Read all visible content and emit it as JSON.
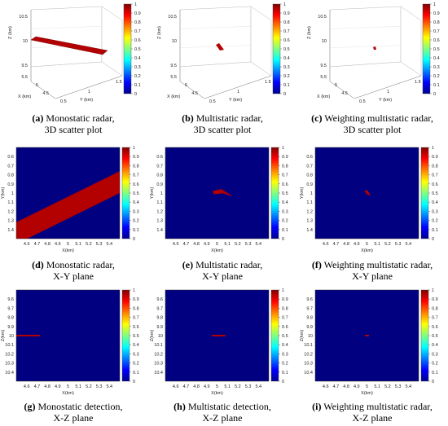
{
  "colors": {
    "background": "#000080",
    "target": "#b30000",
    "colormap": [
      "#00008f",
      "#0000ff",
      "#0080ff",
      "#00ffff",
      "#80ff80",
      "#ffff00",
      "#ff8000",
      "#ff0000",
      "#800000"
    ]
  },
  "panels": [
    {
      "label": "(a)",
      "caption_line1": "Monostatic radar,",
      "caption_line2": "3D scatter plot"
    },
    {
      "label": "(b)",
      "caption_line1": "Multistatic radar,",
      "caption_line2": "3D scatter plot"
    },
    {
      "label": "(c)",
      "caption_line1": "Weighting multistatic radar,",
      "caption_line2": "3D scatter plot"
    },
    {
      "label": "(d)",
      "caption_line1": "Monostatic radar,",
      "caption_line2": "X-Y plane"
    },
    {
      "label": "(e)",
      "caption_line1": "Multistatic radar,",
      "caption_line2": "X-Y plane"
    },
    {
      "label": "(f)",
      "caption_line1": "Weighting multistatic radar,",
      "caption_line2": "X-Y plane"
    },
    {
      "label": "(g)",
      "caption_line1": "Monostatic detection,",
      "caption_line2": "X-Z plane"
    },
    {
      "label": "(h)",
      "caption_line1": "Multistatic detection,",
      "caption_line2": "X-Z plane"
    },
    {
      "label": "(i)",
      "caption_line1": "Weighting multistatic radar,",
      "caption_line2": "X-Z plane"
    }
  ],
  "chart_data": {
    "colorbar": {
      "range": [
        0,
        1
      ],
      "ticks": [
        "0",
        "0.1",
        "0.2",
        "0.3",
        "0.4",
        "0.5",
        "0.6",
        "0.7",
        "0.8",
        "0.9",
        "1"
      ]
    },
    "panels_3d": {
      "type": "scatter",
      "x_label": "X (km)",
      "y_label": "Y (km)",
      "z_label": "Z (km)",
      "x_ticks": [
        "4.5",
        "5",
        "5.5"
      ],
      "y_ticks": [
        "0.5",
        "1",
        "1.5"
      ],
      "z_ticks": [
        "9.5",
        "10",
        "10.5"
      ]
    },
    "panels_xy": {
      "type": "heatmap",
      "x_label": "X(km)",
      "y_label": "Y(km)",
      "x_ticks": [
        "4.6",
        "4.7",
        "4.8",
        "4.9",
        "5",
        "5.1",
        "5.2",
        "5.3",
        "5.4"
      ],
      "y_ticks": [
        "0.6",
        "0.7",
        "0.8",
        "0.9",
        "1",
        "1.1",
        "1.2",
        "1.3",
        "1.4"
      ],
      "xlim": [
        4.5,
        5.5
      ],
      "ylim": [
        0.5,
        1.5
      ]
    },
    "panels_xz": {
      "type": "heatmap",
      "x_label": "X(km)",
      "y_label": "Z(km)",
      "x_ticks": [
        "4.6",
        "4.7",
        "4.8",
        "4.9",
        "5",
        "5.1",
        "5.2",
        "5.3",
        "5.4"
      ],
      "y_ticks": [
        "9.6",
        "9.7",
        "9.8",
        "9.9",
        "10",
        "10.1",
        "10.2",
        "10.3",
        "10.4"
      ],
      "xlim": [
        4.5,
        5.5
      ],
      "ylim": [
        9.5,
        10.5
      ]
    },
    "detections_xy": [
      {
        "panel": "d",
        "band_start": [
          4.5,
          1.44
        ],
        "band_end": [
          5.5,
          0.88
        ],
        "thickness_km": 0.24
      },
      {
        "panel": "e",
        "polygon": [
          [
            4.96,
            0.98
          ],
          [
            5.04,
            0.96
          ],
          [
            5.14,
            1.03
          ],
          [
            5.06,
            1.0
          ],
          [
            4.97,
            1.01
          ]
        ]
      },
      {
        "panel": "f",
        "polygon": [
          [
            4.98,
            0.98
          ],
          [
            5.0,
            0.97
          ],
          [
            5.03,
            1.02
          ],
          [
            5.0,
            1.01
          ]
        ]
      }
    ],
    "detections_xz": [
      {
        "panel": "g",
        "x_range": [
          4.5,
          4.73
        ],
        "z": 10.0
      },
      {
        "panel": "h",
        "x_range": [
          4.95,
          5.08
        ],
        "z": 10.0
      },
      {
        "panel": "i",
        "x_range": [
          4.98,
          5.02
        ],
        "z": 10.0
      }
    ]
  }
}
